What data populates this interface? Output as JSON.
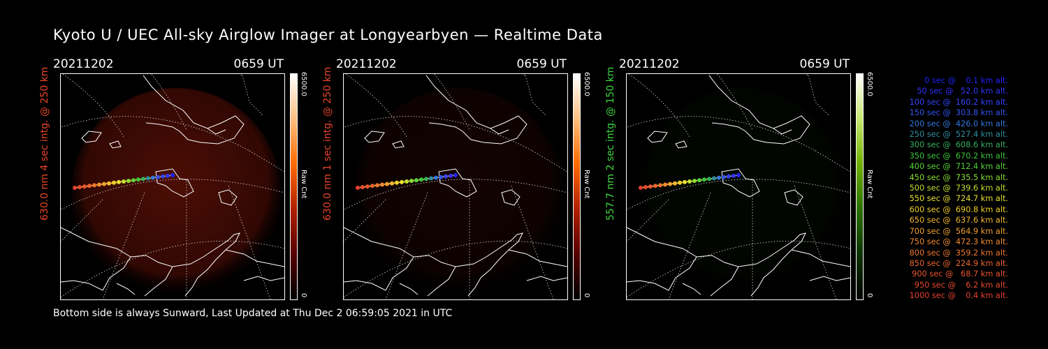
{
  "title": "Kyoto U / UEC All-sky Airglow Imager at Longyearbyen — Realtime Data",
  "panels": [
    {
      "date": "20211202",
      "time": "0659 UT",
      "ylabel": "630.0 nm 4 sec intg. @ 250 km",
      "label_color": "#e8452a",
      "colorbar_max": "6500.0",
      "colorbar_unit": "Raw Cnt",
      "colorbar_min": "0",
      "colormap": "red",
      "glow_opacity": 0.55
    },
    {
      "date": "20211202",
      "time": "0659 UT",
      "ylabel": "630.0 nm 1 sec intg. @ 250 km",
      "label_color": "#e8452a",
      "colorbar_max": "6500.0",
      "colorbar_unit": "Raw Cnt",
      "colorbar_min": "0",
      "colormap": "red",
      "glow_opacity": 0.14
    },
    {
      "date": "20211202",
      "time": "0659 UT",
      "ylabel": "557.7 nm 2 sec intg. @ 150 km",
      "label_color": "#3fd63f",
      "colorbar_max": "6500.0",
      "colorbar_unit": "Raw Cnt",
      "colorbar_min": "0",
      "colormap": "green",
      "glow_opacity": 0.1
    }
  ],
  "legend": [
    {
      "text": "0 sec @    0.1 km alt.",
      "color": "#2222ff"
    },
    {
      "text": "50 sec @   52.0 km alt.",
      "color": "#3333ff"
    },
    {
      "text": "100 sec @  160.2 km alt.",
      "color": "#3344ff"
    },
    {
      "text": "150 sec @  303.8 km alt.",
      "color": "#3355ee"
    },
    {
      "text": "200 sec @  426.0 km alt.",
      "color": "#3377dd"
    },
    {
      "text": "250 sec @  527.4 km alt.",
      "color": "#2f8f9f"
    },
    {
      "text": "300 sec @  608.6 km alt.",
      "color": "#36b060"
    },
    {
      "text": "350 sec @  670.2 km alt.",
      "color": "#3cc43c"
    },
    {
      "text": "400 sec @  712.4 km alt.",
      "color": "#55d23a"
    },
    {
      "text": "450 sec @  735.5 km alt.",
      "color": "#88dd33"
    },
    {
      "text": "500 sec @  739.6 km alt.",
      "color": "#c0e030"
    },
    {
      "text": "550 sec @  724.7 km alt.",
      "color": "#e6e033"
    },
    {
      "text": "600 sec @  690.8 km alt.",
      "color": "#f0d028"
    },
    {
      "text": "650 sec @  637.6 km alt.",
      "color": "#f2b830"
    },
    {
      "text": "700 sec @  564.9 km alt.",
      "color": "#f2a030"
    },
    {
      "text": "750 sec @  472.3 km alt.",
      "color": "#f08a30"
    },
    {
      "text": "800 sec @  359.2 km alt.",
      "color": "#ee7730"
    },
    {
      "text": "850 sec @  224.9 km alt.",
      "color": "#ec6530"
    },
    {
      "text": "900 sec @   68.7 km alt.",
      "color": "#ea5530"
    },
    {
      "text": "950 sec @    6.2 km alt.",
      "color": "#e84a30"
    },
    {
      "text": "1000 sec @    0.4 km alt.",
      "color": "#e64030"
    }
  ],
  "footer": "Bottom side is always Sunward, Last Updated at Thu Dec  2 06:59:05 2021 in UTC"
}
